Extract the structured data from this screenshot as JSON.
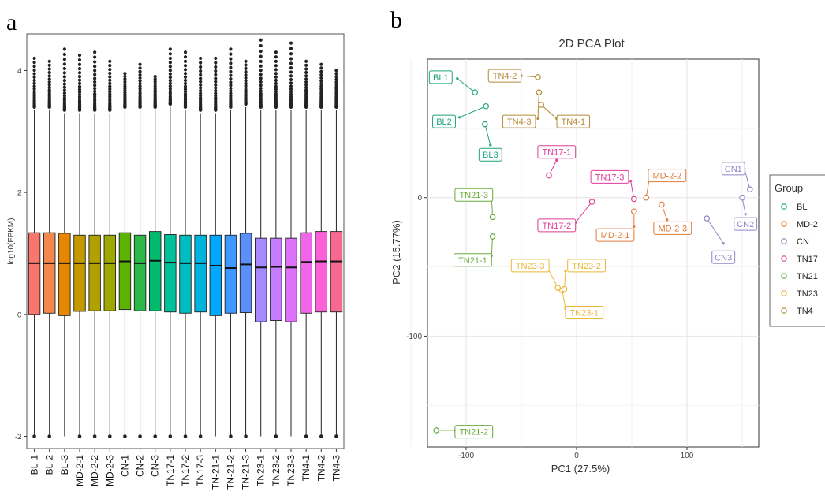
{
  "panel_a_letter": "a",
  "panel_b_letter": "b",
  "chart_data": [
    {
      "type": "box",
      "title": "",
      "ylabel": "log10(FPKM)",
      "xlabel": "",
      "ylim": [
        -2.2,
        4.6
      ],
      "yticks": [
        "-2",
        "0",
        "2",
        "4"
      ],
      "categories": [
        "BL-1",
        "BL-2",
        "BL-3",
        "MD-2-1",
        "MD-2-2",
        "MD-2-3",
        "CN-1",
        "CN-2",
        "CN-3",
        "TN17-1",
        "TN17-2",
        "TN17-3",
        "TN-21-1",
        "TN-21-2",
        "TN-21-3",
        "TN23-1",
        "TN23-2",
        "TN23-3",
        "TN4-1",
        "TN4-2",
        "TN4-3"
      ],
      "colors": [
        "#f8766d",
        "#f2884e",
        "#e58700",
        "#c59a00",
        "#b2a000",
        "#9fa800",
        "#5bb300",
        "#2db84a",
        "#00bb6e",
        "#00c19a",
        "#00bdc2",
        "#00b4e0",
        "#00a9ff",
        "#3e98ff",
        "#5d8ff9",
        "#a58aff",
        "#c77cff",
        "#dd71fa",
        "#f066ea",
        "#fb61d7",
        "#f8698f"
      ],
      "medians": [
        0.84,
        0.84,
        0.84,
        0.84,
        0.84,
        0.84,
        0.87,
        0.84,
        0.88,
        0.85,
        0.84,
        0.84,
        0.8,
        0.76,
        0.82,
        0.77,
        0.78,
        0.77,
        0.86,
        0.87,
        0.87
      ],
      "q1": [
        0.0,
        0.02,
        -0.02,
        0.05,
        0.06,
        0.06,
        0.08,
        0.06,
        0.06,
        0.04,
        0.02,
        0.04,
        -0.02,
        0.02,
        0.03,
        -0.12,
        -0.1,
        -0.12,
        0.02,
        0.04,
        0.04
      ],
      "q3": [
        1.34,
        1.34,
        1.33,
        1.3,
        1.3,
        1.3,
        1.34,
        1.3,
        1.36,
        1.31,
        1.3,
        1.3,
        1.3,
        1.3,
        1.33,
        1.25,
        1.25,
        1.25,
        1.34,
        1.36,
        1.36
      ],
      "whisker_high": [
        3.35,
        3.35,
        3.3,
        3.3,
        3.3,
        3.3,
        3.35,
        3.35,
        3.35,
        3.4,
        3.35,
        3.3,
        3.3,
        3.35,
        3.4,
        3.35,
        3.35,
        3.35,
        3.35,
        3.35,
        3.35
      ],
      "whisker_low": [
        -2,
        -2,
        -2,
        -2,
        -2,
        -2,
        -2,
        -2,
        -2,
        -2,
        -2,
        -2,
        -2,
        -2,
        -2,
        -2,
        -2,
        -2,
        -2,
        -2,
        -2
      ],
      "outlier_low": [
        -2,
        -2,
        null,
        -2,
        -2,
        -2,
        -2,
        -2,
        -2,
        -2,
        -2,
        -2,
        null,
        -2,
        -2,
        null,
        -2,
        null,
        -2,
        -2,
        -2
      ],
      "outlier_max": [
        4.2,
        4.15,
        4.35,
        4.25,
        4.3,
        4.15,
        3.95,
        4.1,
        3.9,
        4.35,
        4.3,
        4.2,
        4.2,
        4.35,
        4.15,
        4.5,
        4.3,
        4.45,
        4.15,
        4.1,
        4.0
      ]
    },
    {
      "type": "scatter",
      "title": "2D PCA Plot",
      "xlabel": "PC1 (27.5%)",
      "ylabel": "PC2 (15.77%)",
      "xlim": [
        -135,
        165
      ],
      "ylim": [
        -180,
        100
      ],
      "xticks": [
        "-100",
        "0",
        "100"
      ],
      "yticks": [
        "-100",
        "0"
      ],
      "grid": true,
      "legend_position": "right",
      "legend_title": "Group",
      "groups": [
        {
          "name": "BL",
          "color": "#1fa47f"
        },
        {
          "name": "MD-2",
          "color": "#e17a3b"
        },
        {
          "name": "CN",
          "color": "#8f88c8"
        },
        {
          "name": "TN17",
          "color": "#df3d95"
        },
        {
          "name": "TN21",
          "color": "#67ad3a"
        },
        {
          "name": "TN23",
          "color": "#ecb735"
        },
        {
          "name": "TN4",
          "color": "#b38a37"
        }
      ],
      "points": [
        {
          "label": "BL1",
          "group": 0,
          "x": -92,
          "y": 76,
          "lx": -123,
          "ly": 87,
          "ax": -108,
          "ay": 86
        },
        {
          "label": "BL2",
          "group": 0,
          "x": -82,
          "y": 66,
          "lx": -120,
          "ly": 55,
          "ax": -106,
          "ay": 58
        },
        {
          "label": "BL3",
          "group": 0,
          "x": -83,
          "y": 53,
          "lx": -78,
          "ly": 31,
          "ax": -78,
          "ay": 38
        },
        {
          "label": "MD-2-1",
          "group": 1,
          "x": 52,
          "y": -10,
          "lx": 35,
          "ly": -27,
          "ax": 52,
          "ay": -21
        },
        {
          "label": "MD-2-2",
          "group": 1,
          "x": 63,
          "y": 0,
          "lx": 82,
          "ly": 16,
          "ax": 66,
          "ay": 14
        },
        {
          "label": "MD-2-3",
          "group": 1,
          "x": 77,
          "y": -5,
          "lx": 87,
          "ly": -22,
          "ax": 82,
          "ay": -16
        },
        {
          "label": "CN1",
          "group": 2,
          "x": 157,
          "y": 6,
          "lx": 142,
          "ly": 21,
          "ax": 152,
          "ay": 21
        },
        {
          "label": "CN2",
          "group": 2,
          "x": 150,
          "y": 0,
          "lx": 153,
          "ly": -19,
          "ax": 153,
          "ay": -12
        },
        {
          "label": "CN3",
          "group": 2,
          "x": 118,
          "y": -15,
          "lx": 133,
          "ly": -43,
          "ax": 133,
          "ay": -33
        },
        {
          "label": "TN17-1",
          "group": 3,
          "x": -25,
          "y": 16,
          "lx": -18,
          "ly": 33,
          "ax": -18,
          "ay": 27
        },
        {
          "label": "TN17-2",
          "group": 3,
          "x": 14,
          "y": -3,
          "lx": -18,
          "ly": -20,
          "ax": -1,
          "ay": -18
        },
        {
          "label": "TN17-3",
          "group": 3,
          "x": 52,
          "y": -1,
          "lx": 30,
          "ly": 15,
          "ax": 49,
          "ay": 12
        },
        {
          "label": "TN21-1",
          "group": 4,
          "x": -76,
          "y": -28,
          "lx": -94,
          "ly": -45,
          "ax": -77,
          "ay": -42
        },
        {
          "label": "TN21-2",
          "group": 4,
          "x": -127,
          "y": -168,
          "lx": -93,
          "ly": -169,
          "ax": -110,
          "ay": -168
        },
        {
          "label": "TN21-3",
          "group": 4,
          "x": -76,
          "y": -14,
          "lx": -93,
          "ly": 2,
          "ax": -77,
          "ay": 1
        },
        {
          "label": "TN23-1",
          "group": 5,
          "x": -13,
          "y": -67,
          "lx": 7,
          "ly": -83,
          "ax": -10,
          "ay": -80
        },
        {
          "label": "TN23-2",
          "group": 5,
          "x": -11,
          "y": -66,
          "lx": 9,
          "ly": -49,
          "ax": -10,
          "ay": -53
        },
        {
          "label": "TN23-3",
          "group": 5,
          "x": -17,
          "y": -65,
          "lx": -42,
          "ly": -49,
          "ax": -26,
          "ay": -51
        },
        {
          "label": "TN4-1",
          "group": 6,
          "x": -32,
          "y": 67,
          "lx": -3,
          "ly": 55,
          "ax": -18,
          "ay": 57
        },
        {
          "label": "TN4-2",
          "group": 6,
          "x": -35,
          "y": 87,
          "lx": -65,
          "ly": 88,
          "ax": -50,
          "ay": 88
        },
        {
          "label": "TN4-3",
          "group": 6,
          "x": -34,
          "y": 76,
          "lx": -52,
          "ly": 55,
          "ax": -35,
          "ay": 57
        }
      ]
    }
  ]
}
